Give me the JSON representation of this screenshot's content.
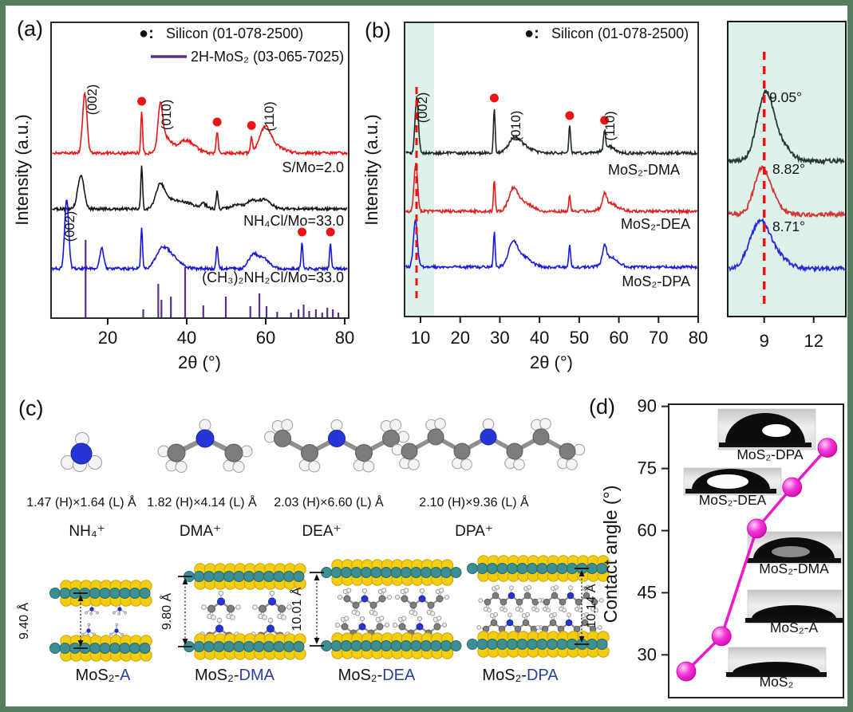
{
  "figure": {
    "border_color": "#587e60",
    "background": "#ffffff"
  },
  "chart_data": [
    {
      "id": "a",
      "type": "line",
      "panel_label": "(a)",
      "xlabel": "2θ (°)",
      "ylabel": "Intensity (a.u.)",
      "xticks": [
        20,
        40,
        60,
        80
      ],
      "xlim": [
        5.7,
        81
      ],
      "grid": false,
      "legend_position": "top-right-inside",
      "legend": [
        {
          "marker": "●:",
          "label": "Silicon (01-078-2500)",
          "color": "#ee1414"
        },
        {
          "marker": "line",
          "label": "2H-MoS₂ (03-065-7025)",
          "color": "#5b2d91"
        }
      ],
      "series": [
        {
          "name": "S/Mo=2.0",
          "color": "#ee1414",
          "peak_labels": [
            "(002)",
            "(010)",
            "(110)"
          ],
          "peaks": [
            [
              14.2,
              75,
              0.55
            ],
            [
              28.6,
              52,
              0.22
            ],
            [
              33.3,
              55,
              0.6
            ],
            [
              34.8,
              18,
              1.2
            ],
            [
              39.8,
              16,
              2.2
            ],
            [
              47.7,
              26,
              0.25
            ],
            [
              56.4,
              20,
              0.25
            ],
            [
              59.8,
              30,
              1.4
            ],
            [
              62.5,
              8,
              2.0
            ]
          ],
          "silicon_dots": [
            28.6,
            47.7,
            56.4
          ]
        },
        {
          "name": "NH₄Cl/Mo=33.0",
          "color": "#161616",
          "peak_labels": [],
          "peaks": [
            [
              13.2,
              42,
              0.8
            ],
            [
              28.6,
              55,
              0.22
            ],
            [
              33.3,
              30,
              1.1
            ],
            [
              36.0,
              10,
              1.5
            ],
            [
              39.8,
              8,
              2.0
            ],
            [
              44.3,
              6,
              0.8
            ],
            [
              47.7,
              22,
              0.25
            ],
            [
              53.0,
              5,
              1.5
            ],
            [
              56.5,
              10,
              1.2
            ],
            [
              59.8,
              12,
              1.5
            ]
          ],
          "silicon_dots": []
        },
        {
          "name": "(CH₃)₂NH₂Cl/Mo=33.0",
          "color": "#1515dd",
          "peak_labels": [
            "(002)"
          ],
          "peaks": [
            [
              9.6,
              88,
              0.5
            ],
            [
              18.5,
              26,
              0.5
            ],
            [
              28.6,
              52,
              0.22
            ],
            [
              33.8,
              22,
              1.6
            ],
            [
              36.5,
              12,
              2.0
            ],
            [
              47.7,
              28,
              0.25
            ],
            [
              56.8,
              16,
              1.2
            ],
            [
              59.5,
              12,
              1.5
            ],
            [
              69.2,
              33,
              0.22
            ],
            [
              76.4,
              33,
              0.22
            ]
          ],
          "silicon_dots": [
            69.2,
            76.4
          ]
        }
      ],
      "reference_sticks": [
        [
          14.4,
          97
        ],
        [
          29.0,
          10
        ],
        [
          32.8,
          42
        ],
        [
          33.6,
          22
        ],
        [
          36.0,
          26
        ],
        [
          39.6,
          63
        ],
        [
          44.2,
          15
        ],
        [
          49.9,
          26
        ],
        [
          56.1,
          14
        ],
        [
          58.4,
          30
        ],
        [
          60.2,
          14
        ],
        [
          62.9,
          7
        ],
        [
          66.4,
          6
        ],
        [
          68.3,
          10
        ],
        [
          69.6,
          16
        ],
        [
          71.0,
          8
        ],
        [
          72.7,
          10
        ],
        [
          74.3,
          6
        ],
        [
          75.6,
          12
        ],
        [
          77.0,
          10
        ],
        [
          78.4,
          6
        ]
      ]
    },
    {
      "id": "b",
      "type": "line",
      "panel_label": "(b)",
      "xlabel": "2θ (°)",
      "ylabel": "Intensity (a.u.)",
      "xticks": [
        10,
        20,
        30,
        40,
        50,
        60,
        70,
        80
      ],
      "xlim": [
        6,
        80
      ],
      "shaded_region": {
        "from_deg": 6,
        "to_deg": 13.4,
        "color": "#def2ec"
      },
      "dashed_line_deg": 9.0,
      "dashed_line_color": "#ee1111",
      "legend": [
        {
          "marker": "●:",
          "label": "Silicon (01-078-2500)",
          "color": "#ee1414"
        }
      ],
      "series": [
        {
          "name": "MoS₂-DMA",
          "color": "#1e2824",
          "peak_labels": [
            "(002)",
            "(010)",
            "(110)"
          ],
          "peaks": [
            [
              9.05,
              70,
              0.42
            ],
            [
              28.6,
              56,
              0.22
            ],
            [
              33.6,
              16,
              1.4
            ],
            [
              36.0,
              8,
              2.0
            ],
            [
              47.6,
              34,
              0.22
            ],
            [
              56.4,
              22,
              0.25
            ],
            [
              57.5,
              8,
              1.5
            ]
          ],
          "silicon_dots": [
            28.6,
            47.6,
            56.4
          ]
        },
        {
          "name": "MoS₂-DEA",
          "color": "#e02020",
          "peak_labels": [],
          "peaks": [
            [
              8.82,
              60,
              0.45
            ],
            [
              28.6,
              40,
              0.22
            ],
            [
              33.3,
              24,
              1.1
            ],
            [
              35.8,
              12,
              2.0
            ],
            [
              47.6,
              20,
              0.22
            ],
            [
              56.4,
              16,
              0.5
            ],
            [
              57.8,
              10,
              1.8
            ]
          ],
          "silicon_dots": []
        },
        {
          "name": "MoS₂-DPA",
          "color": "#1b1be0",
          "peak_labels": [],
          "peaks": [
            [
              8.71,
              58,
              0.5
            ],
            [
              28.6,
              44,
              0.22
            ],
            [
              33.2,
              26,
              1.1
            ],
            [
              35.6,
              14,
              2.0
            ],
            [
              47.6,
              28,
              0.22
            ],
            [
              56.4,
              20,
              0.5
            ],
            [
              58.0,
              12,
              1.8
            ]
          ],
          "silicon_dots": []
        }
      ]
    },
    {
      "id": "b-inset",
      "type": "line",
      "xticks": [
        9,
        12
      ],
      "xlim": [
        6.8,
        13.9
      ],
      "background": "#def2ec",
      "dashed_line_deg": 9.0,
      "dashed_line_color": "#ee1111",
      "series": [
        {
          "label": "9.05°",
          "color": "#2b3833",
          "peaks": [
            [
              9.05,
              80,
              0.5
            ],
            [
              9.95,
              20,
              0.6
            ]
          ]
        },
        {
          "label": "8.82°",
          "color": "#d43434",
          "peaks": [
            [
              8.82,
              52,
              0.45
            ],
            [
              9.5,
              16,
              0.5
            ]
          ]
        },
        {
          "label": "8.71°",
          "color": "#2a2ad8",
          "peaks": [
            [
              8.71,
              55,
              0.6
            ],
            [
              9.7,
              14,
              0.7
            ]
          ]
        }
      ]
    },
    {
      "id": "d",
      "type": "line",
      "panel_label": "(d)",
      "ylabel": "Contact angle (°)",
      "yticks": [
        30,
        45,
        60,
        75,
        90
      ],
      "ylim": [
        22,
        90
      ],
      "categories": [
        "MoS₂",
        "MoS₂-A",
        "MoS₂-DMA",
        "MoS₂-DEA",
        "MoS₂-DPA"
      ],
      "values": [
        26,
        34.5,
        60.5,
        70.5,
        80
      ],
      "line_color": "#ee17cc",
      "droplets": [
        {
          "label": "MoS₂-DPA"
        },
        {
          "label": "MoS₂-DEA"
        },
        {
          "label": "MoS₂-DMA"
        },
        {
          "label": "MoS₂-A"
        },
        {
          "label": "MoS₂"
        }
      ]
    }
  ],
  "panel_c": {
    "label": "(c)",
    "molecules": [
      {
        "name": "NH₄⁺",
        "size": "1.47 (H)×1.64 (L) Å"
      },
      {
        "name": "DMA⁺",
        "size": "1.82 (H)×4.14 (L) Å"
      },
      {
        "name": "DEA⁺",
        "size": "2.03 (H)×6.60 (L) Å"
      },
      {
        "name": "DPA⁺",
        "size": "2.10 (H)×9.36 (L) Å"
      }
    ],
    "structures": [
      {
        "prefix": "MoS₂-",
        "suffix": "A",
        "spacing": "9.40 Å"
      },
      {
        "prefix": "MoS₂-",
        "suffix": "DMA",
        "spacing": "9.80 Å"
      },
      {
        "prefix": "MoS₂-",
        "suffix": "DEA",
        "spacing": "10.01 Å"
      },
      {
        "prefix": "MoS₂-",
        "suffix": "DPA",
        "spacing": "10.14 Å"
      }
    ],
    "atom_colors": {
      "S": "#f2cd10",
      "Mo": "#3d8f93",
      "N": "#2636d6",
      "C": "#7d7d7d",
      "H": "#f4f4f4"
    },
    "label_accent_color": "#2a3f9e"
  }
}
